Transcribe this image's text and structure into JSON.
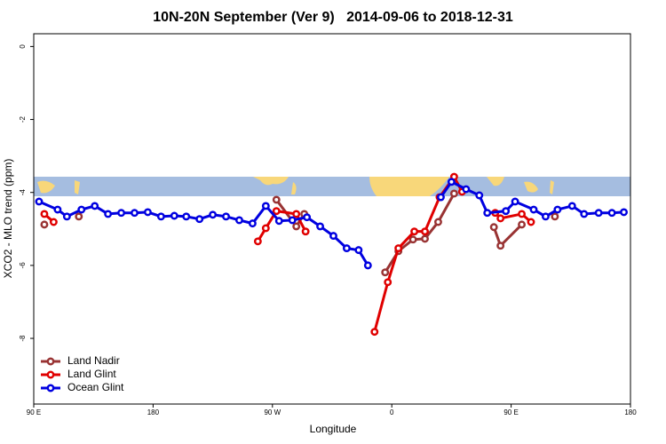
{
  "chart_data": {
    "type": "line",
    "title": "10N-20N September (Ver 9)   2014-09-06 to 2018-12-31",
    "x_label": "Longitude",
    "y_label": "XCO2 - MLO trend (ppm)",
    "xlim": [
      90,
      540
    ],
    "ylim": [
      -9.8,
      0.35
    ],
    "xticks": [
      {
        "value": 90,
        "label": "90 E"
      },
      180,
      {
        "value": 270,
        "label": "90 W"
      },
      {
        "value": 360,
        "label": "0"
      },
      {
        "value": 450,
        "label": "90 E"
      },
      180
    ],
    "yticks": [
      0,
      -2,
      -4,
      -6,
      -8
    ],
    "legend": "bottom-left",
    "series": [
      {
        "name": "Land Nadir",
        "color": "#993333",
        "x": [
          98,
          null,
          124,
          null,
          273,
          288,
          294,
          null,
          355,
          365,
          376,
          385,
          395,
          407,
          null,
          437,
          442,
          458,
          null,
          483
        ],
        "values": [
          -4.88,
          null,
          -4.66,
          null,
          -4.2,
          -4.93,
          -4.59,
          null,
          -6.19,
          -5.61,
          -5.29,
          -5.27,
          -4.81,
          -4.03,
          null,
          -4.95,
          -5.46,
          -4.88,
          null,
          -4.66
        ]
      },
      {
        "name": "Land Glint",
        "color": "#e00000",
        "x": [
          98,
          105,
          null,
          259,
          265,
          273,
          288,
          295,
          null,
          347,
          357,
          365,
          377,
          385,
          396,
          407,
          413,
          null,
          438,
          442,
          458,
          465
        ],
        "values": [
          -4.59,
          -4.81,
          null,
          -5.34,
          -4.98,
          -4.51,
          -4.59,
          -5.07,
          null,
          -7.82,
          -6.46,
          -5.53,
          -5.07,
          -5.07,
          -4.13,
          -3.57,
          -3.98,
          null,
          -4.56,
          -4.71,
          -4.59,
          -4.81
        ]
      },
      {
        "name": "Ocean Glint",
        "color": "#0000e0",
        "x": [
          94,
          108,
          115,
          126,
          136,
          146,
          156,
          166,
          176,
          186,
          196,
          205,
          215,
          225,
          235,
          245,
          255,
          265,
          275,
          285,
          296,
          306,
          316,
          326,
          335,
          342,
          null,
          397,
          405,
          416,
          426,
          432,
          446,
          453,
          467,
          476,
          485,
          496,
          505,
          516,
          526,
          535
        ],
        "values": [
          -4.25,
          -4.47,
          -4.66,
          -4.47,
          -4.37,
          -4.59,
          -4.56,
          -4.56,
          -4.54,
          -4.66,
          -4.64,
          -4.66,
          -4.73,
          -4.61,
          -4.66,
          -4.76,
          -4.85,
          -4.37,
          -4.78,
          -4.76,
          -4.68,
          -4.93,
          -5.19,
          -5.53,
          -5.58,
          -6.0,
          null,
          -4.13,
          -3.71,
          -3.91,
          -4.08,
          -4.56,
          -4.51,
          -4.25,
          -4.47,
          -4.66,
          -4.47,
          -4.37,
          -4.59,
          -4.56,
          -4.56,
          -4.54
        ]
      }
    ]
  }
}
